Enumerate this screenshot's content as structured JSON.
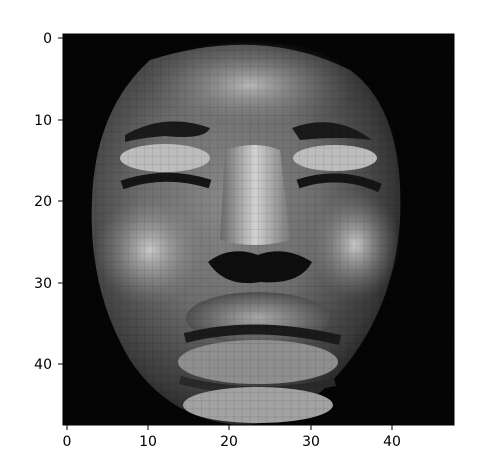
{
  "figure": {
    "image_description_name": "grayscale-face",
    "grid_shape": [
      48,
      48
    ],
    "colormap": "gray"
  },
  "axes": {
    "x_ticks": [
      "0",
      "10",
      "20",
      "30",
      "40"
    ],
    "y_ticks": [
      "0",
      "10",
      "20",
      "30",
      "40"
    ]
  }
}
